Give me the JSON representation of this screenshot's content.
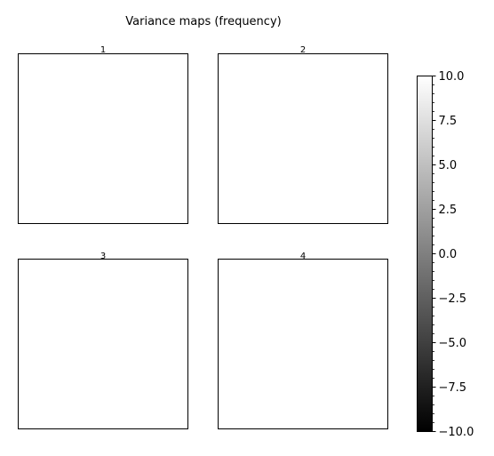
{
  "figure": {
    "title": "Variance maps (frequency)"
  },
  "chart_data": {
    "type": "heatmap",
    "title": "Variance maps (frequency)",
    "panels": [
      {
        "label": "1",
        "values": []
      },
      {
        "label": "2",
        "values": []
      },
      {
        "label": "3",
        "values": []
      },
      {
        "label": "4",
        "values": []
      }
    ],
    "colorbar": {
      "colormap": "gray",
      "vmin": -10.0,
      "vmax": 10.0,
      "tick_labels": [
        "10.0",
        "7.5",
        "5.0",
        "2.5",
        "0.0",
        "−2.5",
        "−5.0",
        "−7.5",
        "−10.0"
      ],
      "tick_values": [
        10.0,
        7.5,
        5.0,
        2.5,
        0.0,
        -2.5,
        -5.0,
        -7.5,
        -10.0
      ],
      "minor_step": 0.5
    },
    "grid": false
  }
}
